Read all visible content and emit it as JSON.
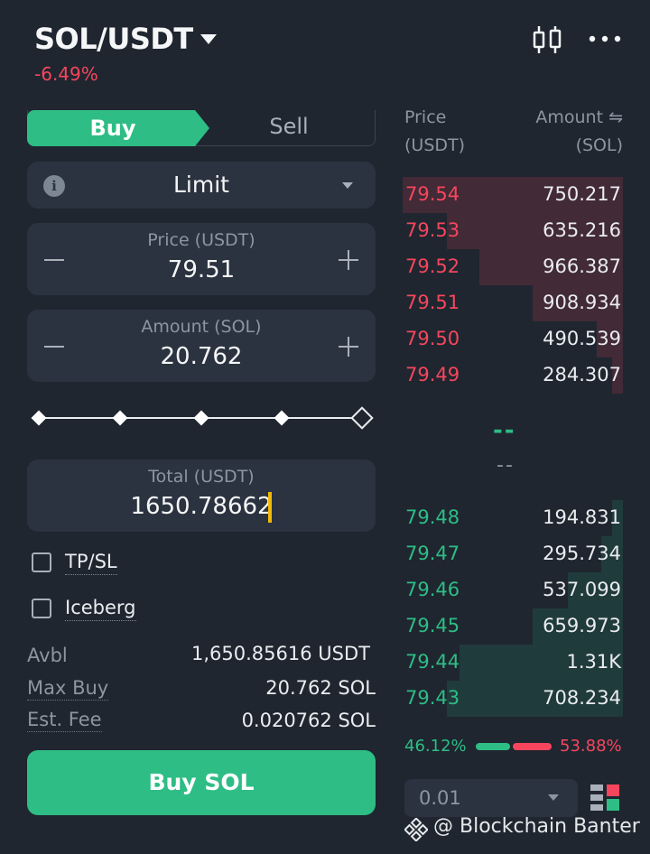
{
  "header": {
    "pair": "SOL/USDT",
    "change": "-6.49%",
    "chart_icon": "candlestick-chart-icon",
    "more_icon": "more-dots-icon"
  },
  "tabs": {
    "buy": "Buy",
    "sell": "Sell"
  },
  "order_type": {
    "label": "Limit",
    "info_icon": "i"
  },
  "price": {
    "title": "Price (USDT)",
    "value": "79.51"
  },
  "amount": {
    "title": "Amount (SOL)",
    "value": "20.762"
  },
  "slider": {
    "positions": [
      "0%",
      "25%",
      "50%",
      "75%",
      "100%"
    ],
    "level": 1.0
  },
  "total": {
    "title": "Total (USDT)",
    "value": "1650.78662"
  },
  "options": {
    "tpsl": "TP/SL",
    "iceberg": "Iceberg"
  },
  "info": {
    "avbl_label": "Avbl",
    "avbl_value": "1,650.85616 USDT",
    "maxbuy_label": "Max Buy",
    "maxbuy_value": "20.762 SOL",
    "fee_label": "Est. Fee",
    "fee_value": "0.020762 SOL"
  },
  "buy_button": "Buy SOL",
  "orderbook": {
    "price_header_1": "Price",
    "price_header_2": "(USDT)",
    "amount_header_1": "Amount ⇋",
    "amount_header_2": "(SOL)",
    "asks": [
      {
        "price": "79.54",
        "amount": "750.217",
        "depth": 1.0
      },
      {
        "price": "79.53",
        "amount": "635.216",
        "depth": 0.8
      },
      {
        "price": "79.52",
        "amount": "966.387",
        "depth": 0.65
      },
      {
        "price": "79.51",
        "amount": "908.934",
        "depth": 0.41
      },
      {
        "price": "79.50",
        "amount": "490.539",
        "depth": 0.12
      },
      {
        "price": "79.49",
        "amount": "284.307",
        "depth": 0.05
      }
    ],
    "mid_price": "--",
    "mid_sub": "--",
    "bids": [
      {
        "price": "79.48",
        "amount": "194.831",
        "depth": 0.05
      },
      {
        "price": "79.47",
        "amount": "295.734",
        "depth": 0.1
      },
      {
        "price": "79.46",
        "amount": "537.099",
        "depth": 0.25
      },
      {
        "price": "79.45",
        "amount": "659.973",
        "depth": 0.41
      },
      {
        "price": "79.44",
        "amount": "1.31K",
        "depth": 0.74
      },
      {
        "price": "79.43",
        "amount": "708.234",
        "depth": 0.8
      }
    ],
    "buy_ratio": "46.12%",
    "sell_ratio": "53.88%",
    "depth_precision": "0.01"
  },
  "colors": {
    "buy": "#2ebd85",
    "sell": "#f6465d",
    "background": "#1f2630",
    "panel": "#2b3340"
  },
  "watermark": "@ Blockchain Banter"
}
